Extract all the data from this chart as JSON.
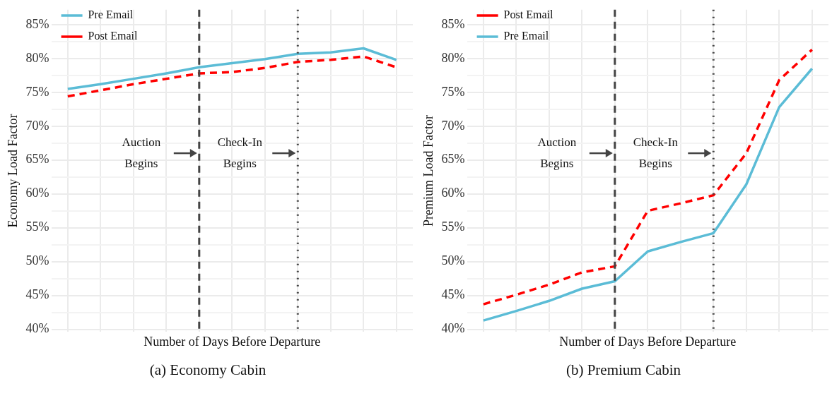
{
  "chart_data": [
    {
      "type": "line",
      "title": "(a) Economy Cabin",
      "xlabel": "Number of Days Before Departure",
      "ylabel": "Economy Load Factor",
      "categories": [
        null,
        null,
        null,
        null,
        null,
        null,
        null,
        null,
        null,
        null,
        null
      ],
      "series": [
        {
          "name": "Pre Email",
          "color": "#5bbcd6",
          "line_style": "solid",
          "values": [
            75.5,
            76.2,
            77.0,
            77.8,
            78.7,
            79.3,
            79.9,
            80.7,
            80.9,
            81.5,
            79.8
          ]
        },
        {
          "name": "Post Email",
          "color": "#ff0000",
          "line_style": "dashed",
          "values": [
            74.4,
            75.3,
            76.2,
            77.0,
            77.8,
            78.0,
            78.6,
            79.5,
            79.8,
            80.3,
            78.7
          ]
        }
      ],
      "ylim": [
        39.6,
        87.2
      ],
      "yticks": [
        {
          "value": 40,
          "label": "40%"
        },
        {
          "value": 42.5,
          "label": null
        },
        {
          "value": 45,
          "label": "45%"
        },
        {
          "value": 47.5,
          "label": null
        },
        {
          "value": 50,
          "label": "50%"
        },
        {
          "value": 52.5,
          "label": null
        },
        {
          "value": 55,
          "label": "55%"
        },
        {
          "value": 57.5,
          "label": null
        },
        {
          "value": 60,
          "label": "60%"
        },
        {
          "value": 62.5,
          "label": null
        },
        {
          "value": 65,
          "label": "65%"
        },
        {
          "value": 67.5,
          "label": null
        },
        {
          "value": 70,
          "label": "70%"
        },
        {
          "value": 72.5,
          "label": null
        },
        {
          "value": 75,
          "label": "75%"
        },
        {
          "value": 77.5,
          "label": null
        },
        {
          "value": 80,
          "label": "80%"
        },
        {
          "value": 82.5,
          "label": null
        },
        {
          "value": 85,
          "label": "85%"
        }
      ],
      "annotations": [
        "Auction Begins",
        "Check-In Begins"
      ],
      "grid": true,
      "legend": "top left",
      "tick_labels": "y",
      "marker": "none"
    },
    {
      "type": "line",
      "title": "(b) Premium Cabin",
      "xlabel": "Number of Days Before Departure",
      "ylabel": "Premium Load Factor",
      "categories": [
        null,
        null,
        null,
        null,
        null,
        null,
        null,
        null,
        null,
        null,
        null
      ],
      "series": [
        {
          "name": "Post Email",
          "color": "#ff0000",
          "line_style": "dashed",
          "values": [
            43.7,
            45.1,
            46.6,
            48.4,
            49.3,
            57.5,
            58.6,
            59.8,
            66.0,
            76.8,
            81.3
          ]
        },
        {
          "name": "Pre Email",
          "color": "#5bbcd6",
          "line_style": "solid",
          "values": [
            41.3,
            42.7,
            44.2,
            46.0,
            47.1,
            51.5,
            52.9,
            54.2,
            61.4,
            72.8,
            78.5
          ]
        }
      ],
      "ylim": [
        39.6,
        87.2
      ],
      "yticks": [
        {
          "value": 40,
          "label": "40%"
        },
        {
          "value": 42.5,
          "label": null
        },
        {
          "value": 45,
          "label": "45%"
        },
        {
          "value": 47.5,
          "label": null
        },
        {
          "value": 50,
          "label": "50%"
        },
        {
          "value": 52.5,
          "label": null
        },
        {
          "value": 55,
          "label": "55%"
        },
        {
          "value": 57.5,
          "label": null
        },
        {
          "value": 60,
          "label": "60%"
        },
        {
          "value": 62.5,
          "label": null
        },
        {
          "value": 65,
          "label": "65%"
        },
        {
          "value": 67.5,
          "label": null
        },
        {
          "value": 70,
          "label": "70%"
        },
        {
          "value": 72.5,
          "label": null
        },
        {
          "value": 75,
          "label": "75%"
        },
        {
          "value": 77.5,
          "label": null
        },
        {
          "value": 80,
          "label": "80%"
        },
        {
          "value": 82.5,
          "label": null
        },
        {
          "value": 85,
          "label": "85%"
        }
      ],
      "annotations": [
        "Auction Begins",
        "Check-In Begins"
      ],
      "grid": true,
      "legend": "top left",
      "tick_labels": "y",
      "marker": "none"
    }
  ]
}
